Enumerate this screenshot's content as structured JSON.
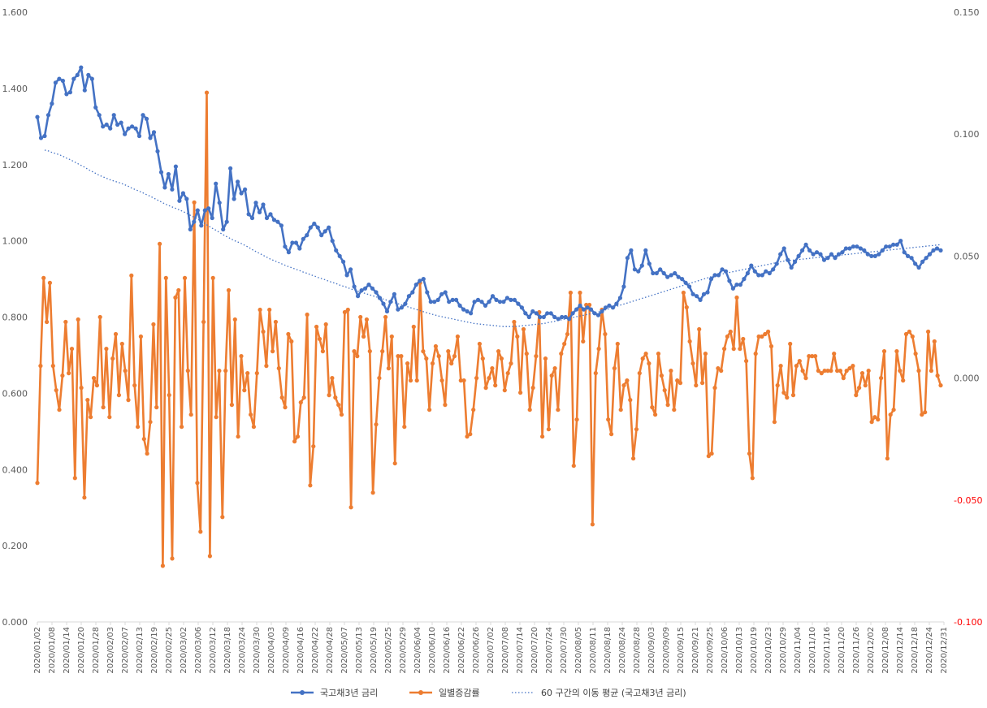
{
  "colors": {
    "blue": "#4472C4",
    "orange": "#ED7D31",
    "moving_avg": "#4472C4",
    "negative_right_tick": "#FF0000",
    "axis_text": "#595959"
  },
  "chart_data": {
    "type": "line",
    "grid": false,
    "legend_position": "bottom",
    "left_axis": {
      "range": [
        0,
        1.6
      ],
      "ticks": [
        "0.000",
        "0.200",
        "0.400",
        "0.600",
        "0.800",
        "1.000",
        "1.200",
        "1.400",
        "1.600"
      ]
    },
    "right_axis": {
      "range": [
        -0.1,
        0.15
      ],
      "ticks": [
        "-0.100",
        "-0.050",
        "0.000",
        "0.050",
        "0.100",
        "0.150"
      ],
      "negative_color": "#FF0000"
    },
    "x_axis": {
      "range": [
        "2020/01/02",
        "2020/12/31"
      ],
      "tick_labels": [
        "2020/01/02",
        "2020/01/08",
        "2020/01/14",
        "2020/01/20",
        "2020/01/28",
        "2020/02/03",
        "2020/02/07",
        "2020/02/13",
        "2020/02/19",
        "2020/02/25",
        "2020/03/02",
        "2020/03/06",
        "2020/03/12",
        "2020/03/18",
        "2020/03/24",
        "2020/03/30",
        "2020/04/03",
        "2020/04/09",
        "2020/04/16",
        "2020/04/22",
        "2020/04/28",
        "2020/05/07",
        "2020/05/13",
        "2020/05/19",
        "2020/05/25",
        "2020/05/29",
        "2020/06/04",
        "2020/06/10",
        "2020/06/16",
        "2020/06/22",
        "2020/06/26",
        "2020/07/02",
        "2020/07/08",
        "2020/07/14",
        "2020/07/20",
        "2020/07/24",
        "2020/07/30",
        "2020/08/05",
        "2020/08/11",
        "2020/08/18",
        "2020/08/24",
        "2020/08/28",
        "2020/09/03",
        "2020/09/09",
        "2020/09/15",
        "2020/09/21",
        "2020/09/25",
        "2020/10/06",
        "2020/10/13",
        "2020/10/19",
        "2020/10/23",
        "2020/10/29",
        "2020/11/04",
        "2020/11/10",
        "2020/11/16",
        "2020/11/20",
        "2020/11/26",
        "2020/12/02",
        "2020/12/08",
        "2020/12/14",
        "2020/12/18",
        "2020/12/24",
        "2020/12/31"
      ]
    },
    "series": [
      {
        "name": "국고채3년 금리",
        "axis": "left",
        "color": "#4472C4",
        "style": "line-markers",
        "values": [
          1.325,
          1.27,
          1.275,
          1.33,
          1.36,
          1.415,
          1.425,
          1.42,
          1.385,
          1.39,
          1.425,
          1.435,
          1.455,
          1.395,
          1.435,
          1.425,
          1.35,
          1.33,
          1.3,
          1.305,
          1.295,
          1.33,
          1.305,
          1.31,
          1.28,
          1.295,
          1.3,
          1.295,
          1.275,
          1.33,
          1.32,
          1.27,
          1.285,
          1.235,
          1.18,
          1.14,
          1.175,
          1.135,
          1.195,
          1.105,
          1.125,
          1.11,
          1.03,
          1.05,
          1.08,
          1.04,
          1.08,
          1.085,
          1.06,
          1.15,
          1.1,
          1.03,
          1.05,
          1.19,
          1.11,
          1.155,
          1.125,
          1.135,
          1.07,
          1.06,
          1.1,
          1.075,
          1.095,
          1.06,
          1.07,
          1.055,
          1.05,
          1.04,
          0.985,
          0.97,
          0.995,
          0.995,
          0.98,
          1.005,
          1.015,
          1.035,
          1.045,
          1.035,
          1.015,
          1.025,
          1.035,
          1.0,
          0.975,
          0.96,
          0.945,
          0.91,
          0.925,
          0.88,
          0.855,
          0.87,
          0.875,
          0.885,
          0.875,
          0.865,
          0.85,
          0.835,
          0.815,
          0.84,
          0.86,
          0.82,
          0.825,
          0.835,
          0.855,
          0.865,
          0.885,
          0.895,
          0.9,
          0.865,
          0.84,
          0.84,
          0.845,
          0.86,
          0.865,
          0.84,
          0.845,
          0.845,
          0.83,
          0.82,
          0.815,
          0.81,
          0.84,
          0.845,
          0.84,
          0.83,
          0.84,
          0.855,
          0.845,
          0.84,
          0.84,
          0.85,
          0.845,
          0.845,
          0.835,
          0.825,
          0.81,
          0.8,
          0.815,
          0.81,
          0.8,
          0.8,
          0.81,
          0.81,
          0.8,
          0.795,
          0.8,
          0.8,
          0.795,
          0.81,
          0.82,
          0.83,
          0.82,
          0.825,
          0.82,
          0.81,
          0.805,
          0.815,
          0.825,
          0.83,
          0.825,
          0.835,
          0.85,
          0.88,
          0.955,
          0.975,
          0.925,
          0.92,
          0.935,
          0.975,
          0.94,
          0.915,
          0.915,
          0.925,
          0.915,
          0.905,
          0.91,
          0.915,
          0.905,
          0.9,
          0.89,
          0.88,
          0.86,
          0.855,
          0.845,
          0.86,
          0.865,
          0.9,
          0.91,
          0.91,
          0.925,
          0.92,
          0.895,
          0.875,
          0.885,
          0.885,
          0.9,
          0.915,
          0.935,
          0.92,
          0.91,
          0.91,
          0.92,
          0.915,
          0.925,
          0.94,
          0.965,
          0.98,
          0.95,
          0.93,
          0.945,
          0.96,
          0.975,
          0.99,
          0.975,
          0.965,
          0.97,
          0.965,
          0.95,
          0.955,
          0.965,
          0.955,
          0.965,
          0.97,
          0.98,
          0.98,
          0.985,
          0.985,
          0.98,
          0.975,
          0.965,
          0.96,
          0.96,
          0.965,
          0.975,
          0.985,
          0.985,
          0.99,
          0.99,
          1.0,
          0.97,
          0.96,
          0.955,
          0.94,
          0.93,
          0.945,
          0.955,
          0.965,
          0.975,
          0.98,
          0.975
        ]
      },
      {
        "name": "일별증감률",
        "axis": "right",
        "color": "#ED7D31",
        "style": "line-markers",
        "values": [
          -0.043,
          0.005,
          0.041,
          0.023,
          0.039,
          0.005,
          -0.005,
          -0.013,
          0.001,
          0.023,
          0.002,
          0.012,
          -0.041,
          0.024,
          -0.004,
          -0.049,
          -0.009,
          -0.016,
          0.0,
          -0.003,
          0.025,
          -0.012,
          0.012,
          -0.016,
          0.008,
          0.018,
          -0.007,
          0.014,
          0.003,
          -0.009,
          0.042,
          -0.003,
          -0.02,
          0.017,
          -0.025,
          -0.031,
          -0.018,
          0.022,
          -0.012,
          0.055,
          -0.077,
          0.041,
          -0.007,
          -0.074,
          0.033,
          0.036,
          -0.02,
          0.041,
          0.003,
          -0.015,
          0.072,
          -0.043,
          -0.063,
          0.023,
          0.117,
          -0.073,
          0.041,
          -0.016,
          0.003,
          -0.057,
          0.003,
          0.036,
          -0.011,
          0.024,
          -0.024,
          0.009,
          -0.005,
          0.002,
          -0.015,
          -0.02,
          0.002,
          0.028,
          0.019,
          0.005,
          0.028,
          0.011,
          0.023,
          0.004,
          -0.008,
          -0.012,
          0.018,
          0.015,
          -0.026,
          -0.024,
          -0.01,
          -0.008,
          0.026,
          -0.044,
          -0.028,
          0.021,
          0.016,
          0.011,
          0.022,
          -0.007,
          0.0,
          -0.008,
          -0.011,
          -0.015,
          0.027,
          0.028,
          -0.053,
          0.011,
          0.009,
          0.025,
          0.017,
          0.024,
          0.011,
          -0.047,
          -0.019,
          0.0,
          0.011,
          0.025,
          0.004,
          0.017,
          -0.035,
          0.009,
          0.009,
          -0.02,
          0.006,
          -0.001,
          0.021,
          -0.001,
          0.039,
          0.011,
          0.008,
          -0.013,
          0.006,
          0.013,
          0.009,
          -0.001,
          -0.011,
          0.011,
          0.006,
          0.009,
          0.017,
          -0.001,
          -0.001,
          -0.024,
          -0.023,
          -0.013,
          0.0,
          0.014,
          0.008,
          -0.004,
          0.0,
          0.004,
          -0.003,
          0.011,
          0.008,
          -0.005,
          0.002,
          0.006,
          0.023,
          0.017,
          -0.006,
          0.02,
          0.01,
          -0.013,
          -0.004,
          0.009,
          0.027,
          -0.024,
          0.008,
          -0.021,
          0.001,
          0.004,
          -0.013,
          0.01,
          0.014,
          0.018,
          0.035,
          -0.036,
          -0.017,
          0.035,
          0.015,
          0.03,
          0.03,
          -0.06,
          0.002,
          0.012,
          0.028,
          0.018,
          -0.017,
          -0.023,
          0.004,
          0.014,
          -0.013,
          -0.003,
          -0.001,
          -0.009,
          -0.033,
          -0.021,
          0.002,
          0.008,
          0.01,
          0.006,
          -0.012,
          -0.015,
          0.01,
          0.001,
          -0.005,
          -0.011,
          0.003,
          -0.013,
          -0.001,
          -0.002,
          0.035,
          0.029,
          0.015,
          0.006,
          -0.003,
          0.02,
          -0.002,
          0.01,
          -0.032,
          -0.031,
          -0.004,
          0.004,
          0.003,
          0.012,
          0.017,
          0.019,
          0.012,
          0.033,
          0.012,
          0.016,
          0.007,
          -0.031,
          -0.041,
          0.01,
          0.017,
          0.017,
          0.018,
          0.019,
          0.013,
          -0.018,
          -0.003,
          0.005,
          -0.006,
          -0.008,
          0.014,
          -0.007,
          0.005,
          0.007,
          0.003,
          0.0,
          0.009,
          0.009,
          0.009,
          0.003,
          0.002,
          0.003,
          0.003,
          0.003,
          0.01,
          0.003,
          0.003,
          0.0,
          0.003,
          0.004,
          0.005,
          -0.007,
          -0.004,
          0.002,
          -0.003,
          0.003,
          -0.018,
          -0.016,
          -0.017,
          0.0,
          0.011,
          -0.033,
          -0.015,
          -0.013,
          0.011,
          0.003,
          -0.001,
          0.018,
          0.019,
          0.017,
          0.01,
          0.003,
          -0.015,
          -0.014,
          0.019,
          0.003,
          0.015,
          0.001,
          -0.003
        ]
      },
      {
        "name": "60 구간의 이동 평균 (국고채3년 금리)",
        "axis": "left",
        "color": "#4472C4",
        "style": "dotted",
        "values": [
          1.238,
          1.236,
          1.232,
          1.229,
          1.226,
          1.222,
          1.217,
          1.213,
          1.208,
          1.203,
          1.198,
          1.193,
          1.187,
          1.182,
          1.177,
          1.172,
          1.168,
          1.164,
          1.16,
          1.157,
          1.154,
          1.151,
          1.147,
          1.143,
          1.138,
          1.134,
          1.13,
          1.126,
          1.121,
          1.117,
          1.112,
          1.107,
          1.102,
          1.097,
          1.093,
          1.089,
          1.085,
          1.081,
          1.077,
          1.072,
          1.067,
          1.062,
          1.057,
          1.051,
          1.045,
          1.039,
          1.033,
          1.028,
          1.022,
          1.016,
          1.011,
          1.006,
          1.001,
          0.997,
          0.993,
          0.988,
          0.983,
          0.977,
          0.972,
          0.967,
          0.962,
          0.957,
          0.952,
          0.948,
          0.944,
          0.94,
          0.936,
          0.932,
          0.929,
          0.925,
          0.922,
          0.918,
          0.915,
          0.911,
          0.908,
          0.904,
          0.901,
          0.898,
          0.894,
          0.891,
          0.888,
          0.884,
          0.881,
          0.878,
          0.874,
          0.871,
          0.868,
          0.865,
          0.862,
          0.859,
          0.856,
          0.853,
          0.85,
          0.847,
          0.844,
          0.841,
          0.838,
          0.835,
          0.832,
          0.829,
          0.826,
          0.823,
          0.82,
          0.817,
          0.814,
          0.811,
          0.808,
          0.806,
          0.803,
          0.801,
          0.799,
          0.797,
          0.795,
          0.793,
          0.791,
          0.789,
          0.787,
          0.785,
          0.783,
          0.782,
          0.781,
          0.78,
          0.779,
          0.778,
          0.777,
          0.776,
          0.775,
          0.775,
          0.775,
          0.775,
          0.776,
          0.777,
          0.778,
          0.779,
          0.78,
          0.781,
          0.782,
          0.783,
          0.785,
          0.787,
          0.789,
          0.791,
          0.793,
          0.795,
          0.797,
          0.799,
          0.801,
          0.803,
          0.805,
          0.807,
          0.809,
          0.811,
          0.813,
          0.816,
          0.819,
          0.822,
          0.825,
          0.828,
          0.831,
          0.834,
          0.837,
          0.84,
          0.843,
          0.846,
          0.849,
          0.852,
          0.855,
          0.858,
          0.861,
          0.864,
          0.867,
          0.87,
          0.873,
          0.876,
          0.879,
          0.882,
          0.885,
          0.888,
          0.891,
          0.894,
          0.897,
          0.9,
          0.903,
          0.906,
          0.909,
          0.911,
          0.913,
          0.915,
          0.917,
          0.919,
          0.921,
          0.923,
          0.925,
          0.927,
          0.929,
          0.931,
          0.933,
          0.935,
          0.937,
          0.939,
          0.941,
          0.943,
          0.945,
          0.947,
          0.948,
          0.949,
          0.95,
          0.951,
          0.952,
          0.953,
          0.954,
          0.955,
          0.956,
          0.957,
          0.958,
          0.959,
          0.96,
          0.961,
          0.962,
          0.963,
          0.964,
          0.965,
          0.966,
          0.967,
          0.968,
          0.969,
          0.97,
          0.971,
          0.972,
          0.973,
          0.974,
          0.975,
          0.976,
          0.977,
          0.978,
          0.979,
          0.98,
          0.981,
          0.982,
          0.983,
          0.984,
          0.985,
          0.986,
          0.987,
          0.988,
          0.989,
          0.99
        ]
      }
    ],
    "legend": [
      {
        "label": "국고채3년 금리",
        "style": "line-markers",
        "color": "#4472C4"
      },
      {
        "label": "일별증감률",
        "style": "line-markers",
        "color": "#ED7D31"
      },
      {
        "label": "60 구간의 이동 평균 (국고채3년 금리)",
        "style": "dotted",
        "color": "#4472C4"
      }
    ]
  }
}
